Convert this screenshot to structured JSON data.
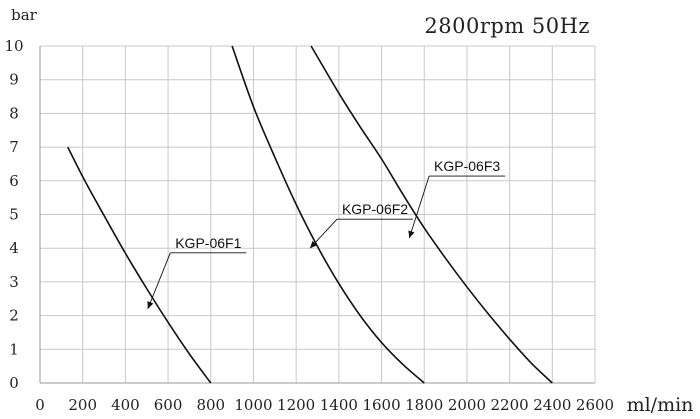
{
  "chart_data": {
    "type": "line",
    "title": "2800rpm 50Hz",
    "ylabel": "bar",
    "xlabel": "ml/min",
    "xlim": [
      0,
      2600
    ],
    "ylim": [
      0,
      10
    ],
    "x_ticks": [
      0,
      200,
      400,
      600,
      800,
      1000,
      1200,
      1400,
      1600,
      1800,
      2000,
      2200,
      2400,
      2600
    ],
    "y_ticks": [
      0,
      1,
      2,
      3,
      4,
      5,
      6,
      7,
      8,
      9,
      10
    ],
    "grid": true,
    "series": [
      {
        "name": "KGP-06F1",
        "x": [
          130,
          210,
          300,
          400,
          500,
          600,
          700,
          800
        ],
        "y": [
          7.0,
          6.0,
          4.97,
          3.85,
          2.8,
          1.8,
          0.86,
          0
        ]
      },
      {
        "name": "KGP-06F2",
        "x": [
          900,
          1000,
          1100,
          1200,
          1300,
          1400,
          1500,
          1600,
          1700,
          1800
        ],
        "y": [
          10.0,
          8.2,
          6.7,
          5.3,
          4.05,
          2.95,
          2.0,
          1.2,
          0.55,
          0
        ]
      },
      {
        "name": "KGP-06F3",
        "x": [
          1270,
          1400,
          1500,
          1600,
          1700,
          1800,
          1900,
          2000,
          2100,
          2200,
          2300,
          2400
        ],
        "y": [
          10.0,
          8.6,
          7.6,
          6.65,
          5.6,
          4.6,
          3.7,
          2.85,
          2.05,
          1.3,
          0.6,
          0
        ]
      }
    ],
    "annotations": [
      {
        "label": "KGP-06F1",
        "series": "KGP-06F1",
        "point": [
          505,
          2.2
        ]
      },
      {
        "label": "KGP-06F2",
        "series": "KGP-06F2",
        "point": [
          1265,
          4.0
        ]
      },
      {
        "label": "KGP-06F3",
        "series": "KGP-06F3",
        "point": [
          1730,
          4.3
        ]
      }
    ]
  }
}
